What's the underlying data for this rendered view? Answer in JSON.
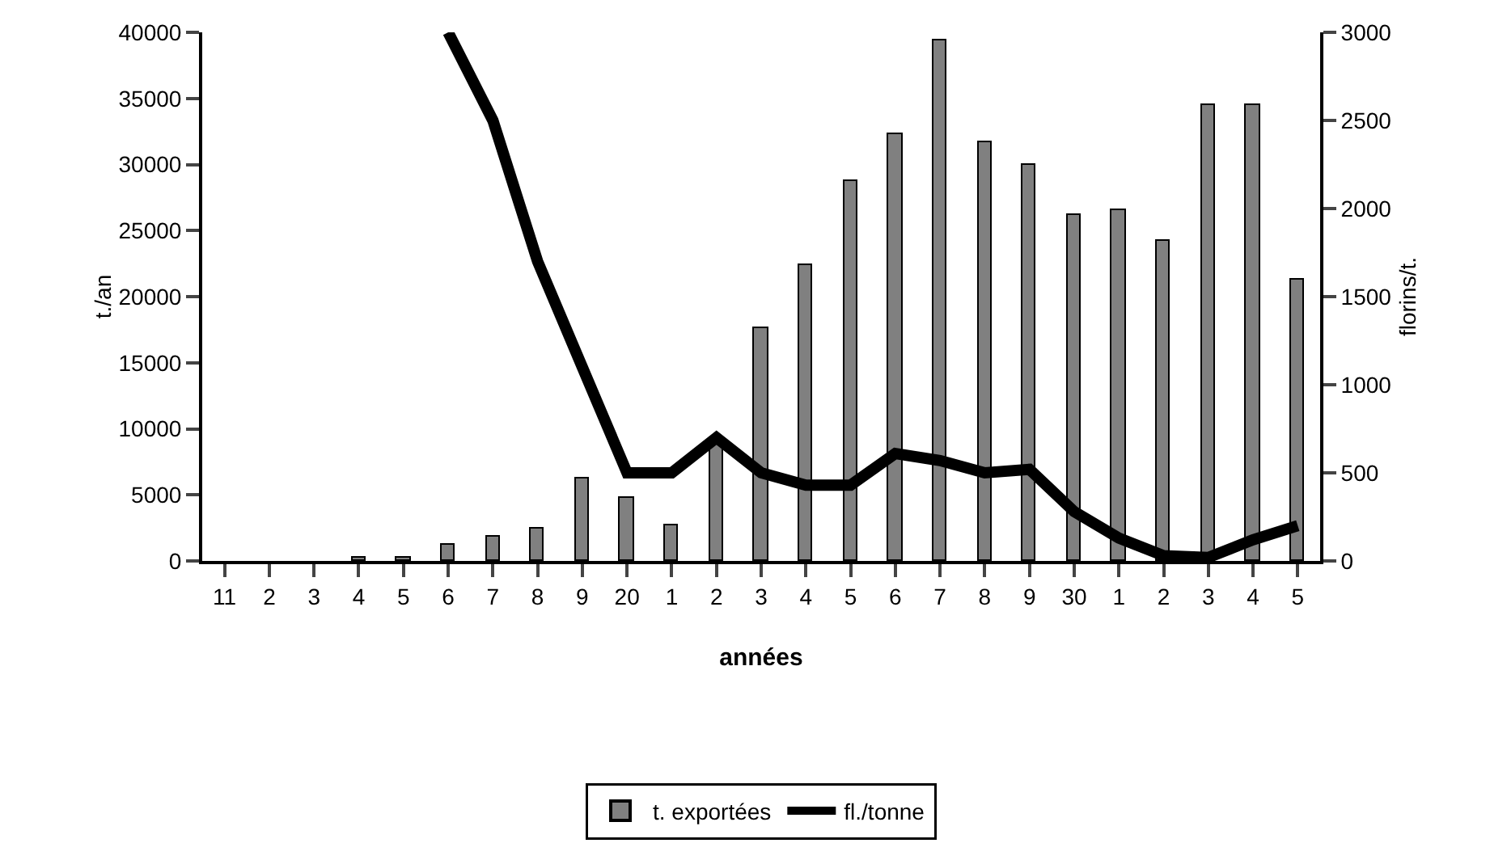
{
  "chart_data": {
    "type": "bar",
    "xlabel": "années",
    "ylabel": "t./an",
    "y2label": "florins/t.",
    "categories": [
      "11",
      "2",
      "3",
      "4",
      "5",
      "6",
      "7",
      "8",
      "9",
      "20",
      "1",
      "2",
      "3",
      "4",
      "5",
      "6",
      "7",
      "8",
      "9",
      "30",
      "1",
      "2",
      "3",
      "4",
      "5"
    ],
    "series": [
      {
        "name": "t. exportées",
        "color": "#808080",
        "values": [
          null,
          null,
          null,
          300,
          300,
          1200,
          1800,
          2500,
          6200,
          4800,
          2700,
          9200,
          17600,
          22400,
          28800,
          32300,
          39400,
          31700,
          30000,
          26200,
          26500,
          24200,
          34500,
          34500,
          21300
        ]
      },
      {
        "name": "fl./tonne",
        "type": "line",
        "axis": "y2",
        "color": "#000000",
        "values": [
          null,
          null,
          null,
          null,
          null,
          3000,
          2500,
          1700,
          1100,
          500,
          500,
          700,
          500,
          430,
          430,
          610,
          570,
          500,
          520,
          280,
          130,
          30,
          20,
          120,
          200
        ]
      }
    ],
    "ylim": [
      0,
      40000
    ],
    "yticks": [
      0,
      5000,
      10000,
      15000,
      20000,
      25000,
      30000,
      35000,
      40000
    ],
    "y2lim": [
      0,
      3000
    ],
    "y2ticks": [
      0,
      500,
      1000,
      1500,
      2000,
      2500,
      3000
    ],
    "grid": false,
    "legend": "bottom",
    "marker": "none",
    "line_style": "solid"
  }
}
